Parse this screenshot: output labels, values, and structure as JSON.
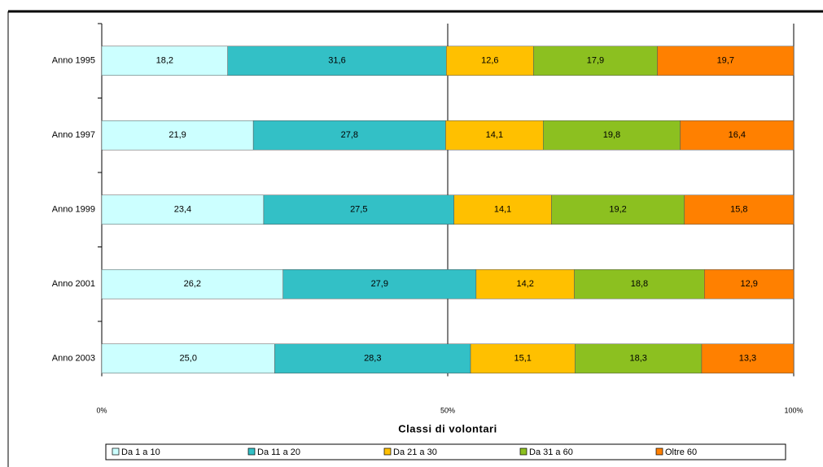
{
  "chart_data": {
    "type": "bar",
    "orientation": "horizontal",
    "stacked": true,
    "x_label": "Classi di volontari",
    "categories": [
      "Anno 1995",
      "Anno 1997",
      "Anno 1999",
      "Anno 2001",
      "Anno 2003"
    ],
    "series": [
      {
        "name": "Da 1 a 10",
        "color": "#ccffff",
        "values": [
          18.2,
          21.9,
          23.4,
          26.2,
          25.0
        ],
        "value_labels": [
          "18,2",
          "21,9",
          "23,4",
          "26,2",
          "25,0"
        ]
      },
      {
        "name": "Da 11 a 20",
        "color": "#33c0c6",
        "values": [
          31.6,
          27.8,
          27.5,
          27.9,
          28.3
        ],
        "value_labels": [
          "31,6",
          "27,8",
          "27,5",
          "27,9",
          "28,3"
        ]
      },
      {
        "name": "Da 21 a 30",
        "color": "#ffc000",
        "values": [
          12.6,
          14.1,
          14.1,
          14.2,
          15.1
        ],
        "value_labels": [
          "12,6",
          "14,1",
          "14,1",
          "14,2",
          "15,1"
        ]
      },
      {
        "name": "Da 31 a 60",
        "color": "#8cc020",
        "values": [
          17.9,
          19.8,
          19.2,
          18.8,
          18.3
        ],
        "value_labels": [
          "17,9",
          "19,8",
          "19,2",
          "18,8",
          "18,3"
        ]
      },
      {
        "name": "Oltre 60",
        "color": "#ff8000",
        "values": [
          19.7,
          16.4,
          15.8,
          12.9,
          13.3
        ],
        "value_labels": [
          "19,7",
          "16,4",
          "15,8",
          "12,9",
          "13,3"
        ]
      }
    ],
    "xlim": [
      0,
      100
    ],
    "xticks": [
      {
        "value": 0,
        "label": "0%"
      },
      {
        "value": 50,
        "label": "50%"
      },
      {
        "value": 100,
        "label": "100%"
      }
    ],
    "grid": true,
    "legend": "bottom"
  }
}
